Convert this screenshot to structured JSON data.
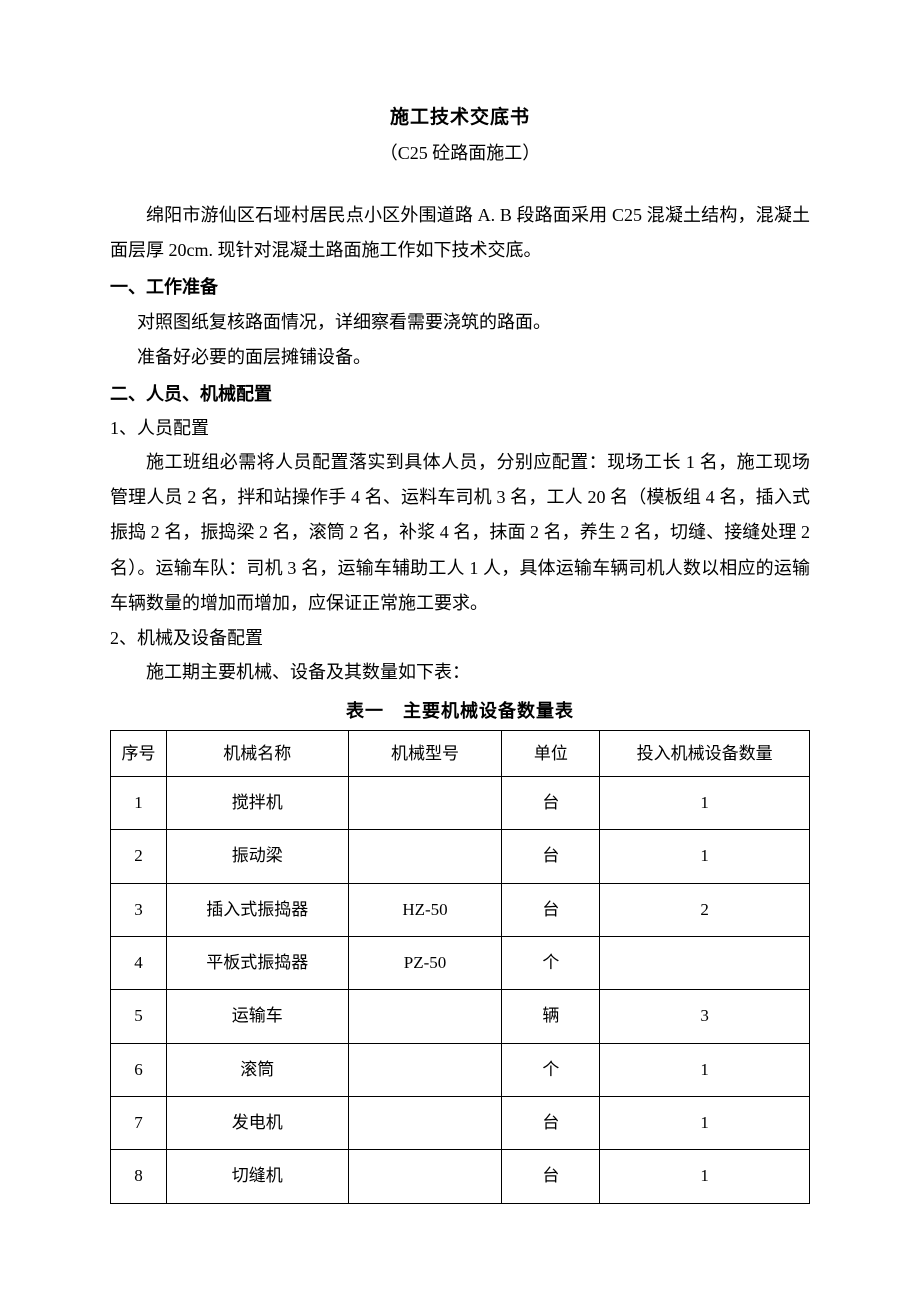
{
  "title": "施工技术交底书",
  "subtitle": "（C25 砼路面施工）",
  "intro": "绵阳市游仙区石垭村居民点小区外围道路 A. B 段路面采用 C25 混凝土结构，混凝土面层厚 20cm. 现针对混凝土路面施工作如下技术交底。",
  "section1": {
    "heading": "一、工作准备",
    "lines": [
      "对照图纸复核路面情况，详细察看需要浇筑的路面。",
      "准备好必要的面层摊铺设备。"
    ]
  },
  "section2": {
    "heading": "二、人员、机械配置",
    "sub1": {
      "label": "1、人员配置",
      "text": "施工班组必需将人员配置落实到具体人员，分别应配置：现场工长 1 名，施工现场管理人员 2 名，拌和站操作手 4 名、运料车司机 3 名，工人 20 名（模板组 4 名，插入式振捣 2 名，振捣梁 2 名，滚筒 2 名，补浆 4 名，抹面 2 名，养生 2 名，切缝、接缝处理 2 名）。运输车队：司机 3 名，运输车辅助工人 1 人，具体运输车辆司机人数以相应的运输车辆数量的增加而增加，应保证正常施工要求。"
    },
    "sub2": {
      "label": "2、机械及设备配置",
      "text": "施工期主要机械、设备及其数量如下表："
    }
  },
  "table": {
    "caption": "表一　主要机械设备数量表",
    "headers": {
      "seq": "序号",
      "name": "机械名称",
      "model": "机械型号",
      "unit": "单位",
      "qty": "投入机械设备数量"
    },
    "rows": [
      {
        "seq": "1",
        "name": "搅拌机",
        "model": "",
        "unit": "台",
        "qty": "1"
      },
      {
        "seq": "2",
        "name": "振动梁",
        "model": "",
        "unit": "台",
        "qty": "1"
      },
      {
        "seq": "3",
        "name": "插入式振捣器",
        "model": "HZ-50",
        "unit": "台",
        "qty": "2"
      },
      {
        "seq": "4",
        "name": "平板式振捣器",
        "model": "PZ-50",
        "unit": "个",
        "qty": ""
      },
      {
        "seq": "5",
        "name": "运输车",
        "model": "",
        "unit": "辆",
        "qty": "3"
      },
      {
        "seq": "6",
        "name": "滚筒",
        "model": "",
        "unit": "个",
        "qty": "1"
      },
      {
        "seq": "7",
        "name": "发电机",
        "model": "",
        "unit": "台",
        "qty": "1"
      },
      {
        "seq": "8",
        "name": "切缝机",
        "model": "",
        "unit": "台",
        "qty": "1"
      }
    ]
  }
}
